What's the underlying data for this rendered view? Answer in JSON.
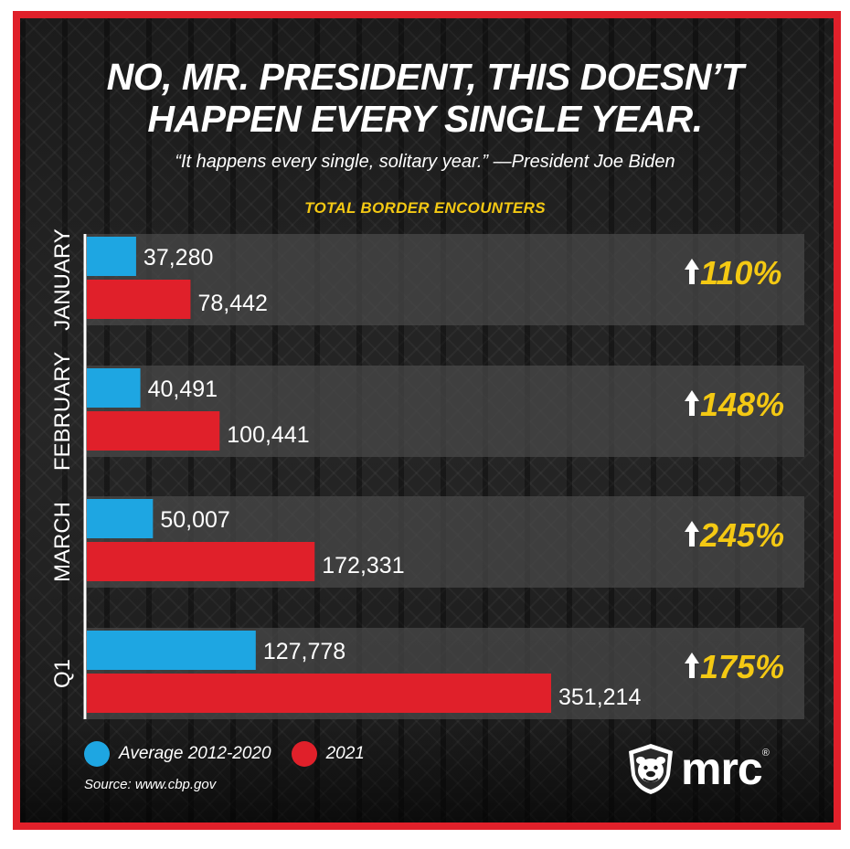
{
  "headline": {
    "line1": "NO, MR. PRESIDENT, THIS DOESN’T",
    "line2": "HAPPEN EVERY SINGLE YEAR."
  },
  "quote": "“It happens every single, solitary year.” —President Joe Biden",
  "colors": {
    "frame": "#e0202a",
    "avg": "#1ea6e2",
    "y2021": "#e0202a",
    "accent": "#f4c913",
    "panel": "#4a4a4a"
  },
  "chart_data": {
    "type": "bar",
    "orientation": "horizontal",
    "title": "TOTAL BORDER ENCOUNTERS",
    "categories": [
      "JANUARY",
      "FEBRUARY",
      "MARCH",
      "Q1"
    ],
    "series": [
      {
        "name": "Average 2012-2020",
        "values": [
          37280,
          40491,
          50007,
          127778
        ],
        "labels": [
          "37,280",
          "40,491",
          "50,007",
          "127,778"
        ]
      },
      {
        "name": "2021",
        "values": [
          78442,
          100441,
          172331,
          351214
        ],
        "labels": [
          "78,442",
          "100,441",
          "172,331",
          "351,214"
        ]
      }
    ],
    "change_labels": [
      "110%",
      "148%",
      "245%",
      "175%"
    ],
    "xlim": [
      0,
      351214
    ],
    "legend": "bottom-left",
    "grid": false
  },
  "legend": {
    "avg_label": "Average 2012-2020",
    "y2021_label": "2021"
  },
  "source": "Source: www.cbp.gov",
  "logo": {
    "text": "mrc",
    "mark": "®",
    "icon": "bulldog-shield-icon"
  }
}
